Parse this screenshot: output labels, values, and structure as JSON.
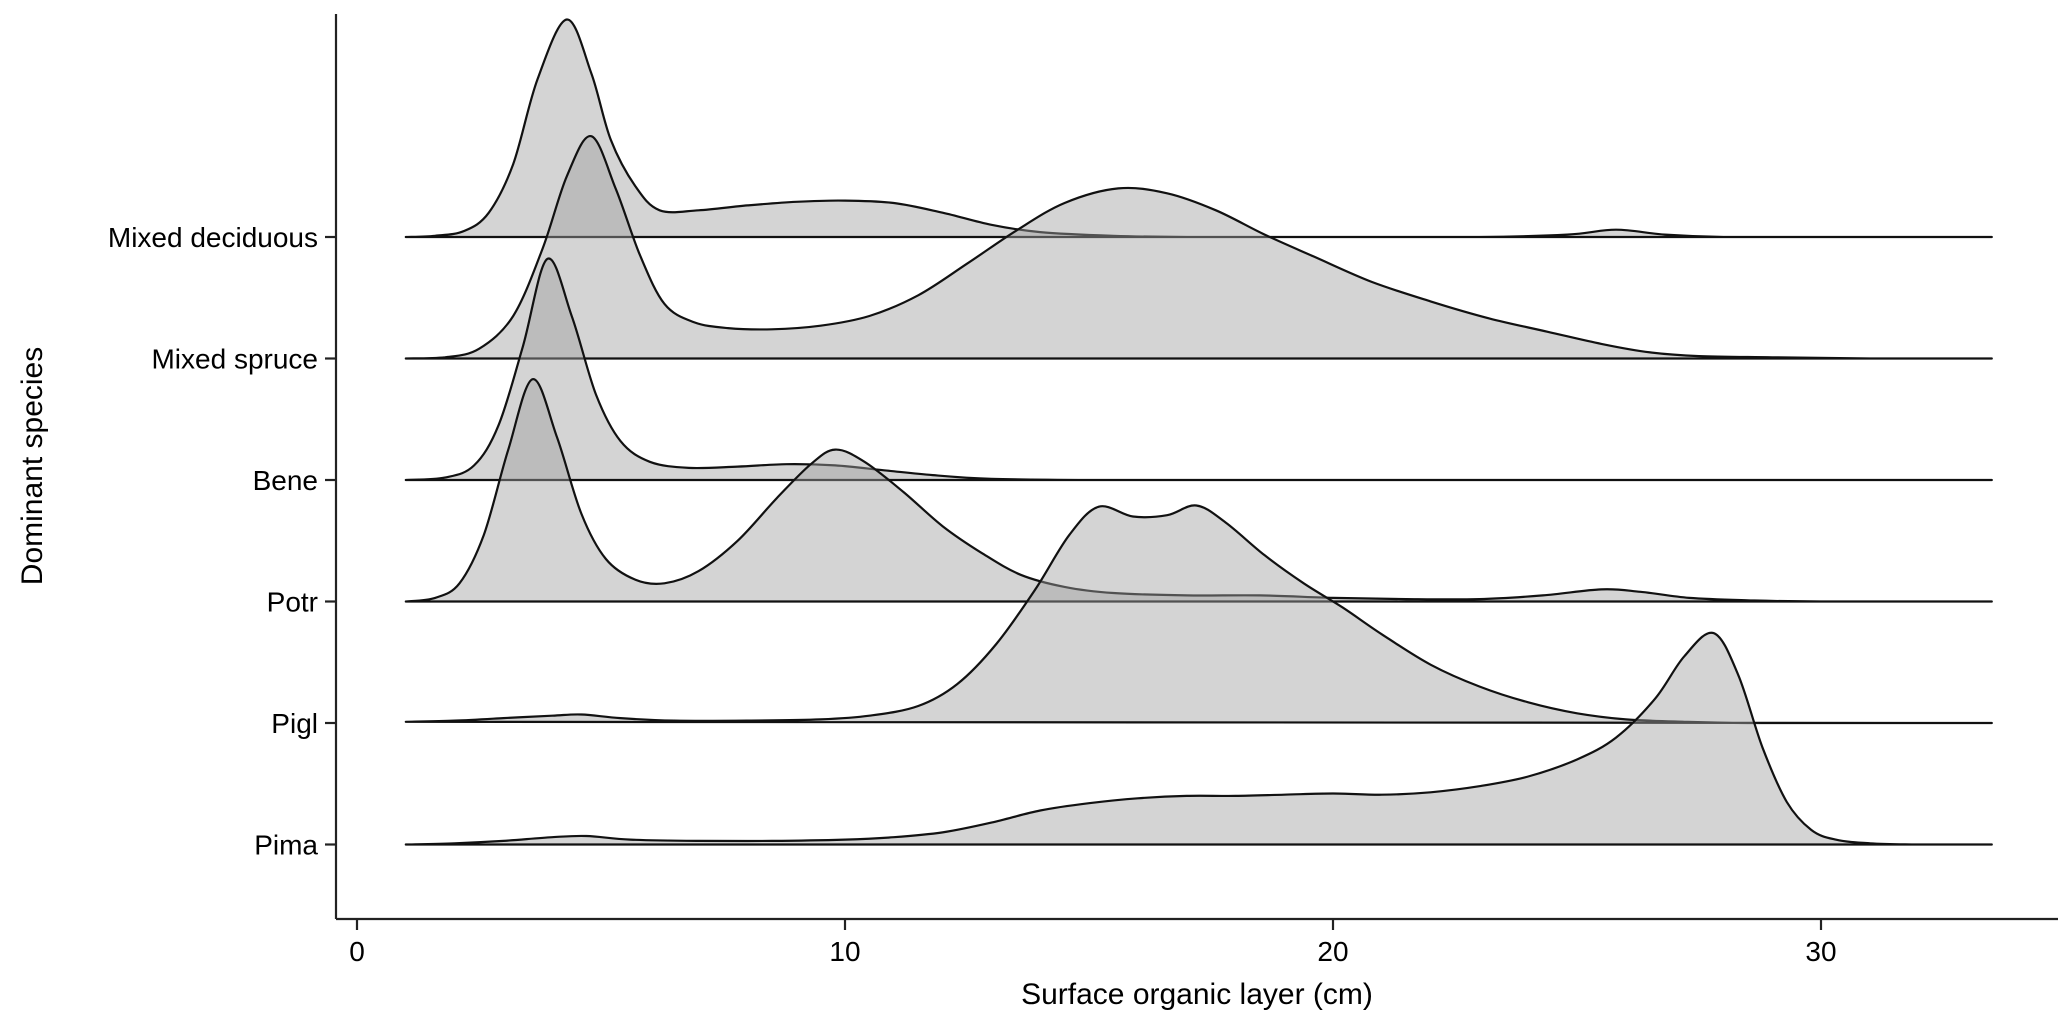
{
  "axes": {
    "x": {
      "title": "Surface organic layer (cm)",
      "tick_labels": [
        "0",
        "10",
        "20",
        "30"
      ]
    },
    "y": {
      "title": "Dominant species",
      "category_labels": [
        "Mixed deciduous",
        "Mixed spruce",
        "Bene",
        "Potr",
        "Pigl",
        "Pima"
      ]
    }
  },
  "chart_data": {
    "type": "area",
    "subtype": "ridgeline-density",
    "title": "",
    "xlabel": "Surface organic layer (cm)",
    "ylabel": "Dominant species",
    "xlim": [
      0,
      33.5
    ],
    "x_ticks": [
      0,
      10,
      20,
      30
    ],
    "grid": false,
    "legend": "none",
    "categories": [
      "Mixed deciduous",
      "Mixed spruce",
      "Bene",
      "Potr",
      "Pigl",
      "Pima"
    ],
    "height_unit": "relative density height, 1.0 = vertical gap between adjacent category baselines",
    "series": [
      {
        "name": "Mixed deciduous",
        "points": [
          [
            1.0,
            0
          ],
          [
            1.6,
            0.01
          ],
          [
            2.2,
            0.05
          ],
          [
            2.7,
            0.2
          ],
          [
            3.2,
            0.6
          ],
          [
            3.7,
            1.3
          ],
          [
            4.3,
            1.79
          ],
          [
            4.8,
            1.35
          ],
          [
            5.2,
            0.8
          ],
          [
            5.7,
            0.42
          ],
          [
            6.2,
            0.22
          ],
          [
            7.0,
            0.22
          ],
          [
            8.0,
            0.26
          ],
          [
            9.0,
            0.29
          ],
          [
            10.0,
            0.3
          ],
          [
            11.0,
            0.28
          ],
          [
            12.0,
            0.2
          ],
          [
            13.0,
            0.1
          ],
          [
            14.0,
            0.04
          ],
          [
            15.5,
            0.01
          ],
          [
            17,
            0
          ],
          [
            20,
            0
          ],
          [
            23,
            0
          ],
          [
            24.8,
            0.02
          ],
          [
            25.8,
            0.06
          ],
          [
            26.8,
            0.02
          ],
          [
            28,
            0
          ],
          [
            30,
            0
          ],
          [
            33.5,
            0
          ]
        ]
      },
      {
        "name": "Mixed spruce",
        "points": [
          [
            1.0,
            0
          ],
          [
            1.8,
            0.01
          ],
          [
            2.5,
            0.08
          ],
          [
            3.2,
            0.35
          ],
          [
            3.8,
            0.9
          ],
          [
            4.3,
            1.5
          ],
          [
            4.8,
            1.83
          ],
          [
            5.3,
            1.4
          ],
          [
            5.8,
            0.85
          ],
          [
            6.3,
            0.45
          ],
          [
            6.9,
            0.3
          ],
          [
            7.6,
            0.25
          ],
          [
            8.5,
            0.24
          ],
          [
            9.5,
            0.27
          ],
          [
            10.5,
            0.35
          ],
          [
            11.5,
            0.52
          ],
          [
            12.5,
            0.78
          ],
          [
            13.5,
            1.05
          ],
          [
            14.5,
            1.28
          ],
          [
            15.6,
            1.4
          ],
          [
            16.6,
            1.36
          ],
          [
            17.6,
            1.22
          ],
          [
            18.6,
            1.02
          ],
          [
            19.6,
            0.84
          ],
          [
            20.8,
            0.63
          ],
          [
            22,
            0.47
          ],
          [
            23.2,
            0.33
          ],
          [
            24.4,
            0.22
          ],
          [
            25.5,
            0.12
          ],
          [
            26.5,
            0.05
          ],
          [
            27.5,
            0.02
          ],
          [
            29,
            0.01
          ],
          [
            31,
            0
          ],
          [
            33.5,
            0
          ]
        ]
      },
      {
        "name": "Bene",
        "points": [
          [
            1.0,
            0
          ],
          [
            1.8,
            0.02
          ],
          [
            2.4,
            0.12
          ],
          [
            2.9,
            0.45
          ],
          [
            3.4,
            1.1
          ],
          [
            3.9,
            1.82
          ],
          [
            4.4,
            1.35
          ],
          [
            4.9,
            0.7
          ],
          [
            5.4,
            0.32
          ],
          [
            6.0,
            0.15
          ],
          [
            6.8,
            0.1
          ],
          [
            7.8,
            0.11
          ],
          [
            8.8,
            0.13
          ],
          [
            9.8,
            0.12
          ],
          [
            10.8,
            0.08
          ],
          [
            11.8,
            0.04
          ],
          [
            13,
            0.01
          ],
          [
            15,
            0
          ],
          [
            18,
            0
          ],
          [
            22,
            0
          ],
          [
            26,
            0
          ],
          [
            30,
            0
          ],
          [
            33.5,
            0
          ]
        ]
      },
      {
        "name": "Potr",
        "points": [
          [
            1.0,
            0
          ],
          [
            1.6,
            0.03
          ],
          [
            2.1,
            0.15
          ],
          [
            2.6,
            0.55
          ],
          [
            3.1,
            1.25
          ],
          [
            3.6,
            1.83
          ],
          [
            4.1,
            1.35
          ],
          [
            4.6,
            0.72
          ],
          [
            5.1,
            0.35
          ],
          [
            5.7,
            0.18
          ],
          [
            6.3,
            0.15
          ],
          [
            7.0,
            0.25
          ],
          [
            7.8,
            0.5
          ],
          [
            8.6,
            0.85
          ],
          [
            9.3,
            1.13
          ],
          [
            9.8,
            1.25
          ],
          [
            10.4,
            1.15
          ],
          [
            11.2,
            0.9
          ],
          [
            12.0,
            0.62
          ],
          [
            12.8,
            0.4
          ],
          [
            13.6,
            0.22
          ],
          [
            14.5,
            0.12
          ],
          [
            15.5,
            0.07
          ],
          [
            17,
            0.05
          ],
          [
            18.5,
            0.05
          ],
          [
            20,
            0.03
          ],
          [
            21.5,
            0.02
          ],
          [
            23,
            0.02
          ],
          [
            24.3,
            0.05
          ],
          [
            25.5,
            0.1
          ],
          [
            26.3,
            0.08
          ],
          [
            27.3,
            0.03
          ],
          [
            28.5,
            0.01
          ],
          [
            30,
            0
          ],
          [
            33.5,
            0
          ]
        ]
      },
      {
        "name": "Pigl",
        "points": [
          [
            1.0,
            0.01
          ],
          [
            2.0,
            0.02
          ],
          [
            3.0,
            0.04
          ],
          [
            4.0,
            0.06
          ],
          [
            4.6,
            0.07
          ],
          [
            5.4,
            0.04
          ],
          [
            6.5,
            0.02
          ],
          [
            8,
            0.02
          ],
          [
            9.5,
            0.03
          ],
          [
            10.5,
            0.06
          ],
          [
            11.5,
            0.14
          ],
          [
            12.3,
            0.32
          ],
          [
            13.1,
            0.65
          ],
          [
            13.9,
            1.1
          ],
          [
            14.6,
            1.55
          ],
          [
            15.2,
            1.78
          ],
          [
            15.9,
            1.7
          ],
          [
            16.6,
            1.71
          ],
          [
            17.2,
            1.79
          ],
          [
            17.8,
            1.65
          ],
          [
            18.6,
            1.38
          ],
          [
            19.4,
            1.15
          ],
          [
            20.2,
            0.95
          ],
          [
            21,
            0.73
          ],
          [
            22,
            0.48
          ],
          [
            23,
            0.3
          ],
          [
            24,
            0.17
          ],
          [
            25,
            0.08
          ],
          [
            26,
            0.03
          ],
          [
            27.2,
            0.01
          ],
          [
            28.5,
            0
          ],
          [
            31,
            0
          ],
          [
            33.5,
            0
          ]
        ]
      },
      {
        "name": "Pima",
        "points": [
          [
            1.0,
            0
          ],
          [
            2.0,
            0.01
          ],
          [
            3.0,
            0.03
          ],
          [
            4.0,
            0.06
          ],
          [
            4.7,
            0.07
          ],
          [
            5.6,
            0.04
          ],
          [
            7,
            0.03
          ],
          [
            8.5,
            0.03
          ],
          [
            10,
            0.04
          ],
          [
            11,
            0.06
          ],
          [
            12,
            0.1
          ],
          [
            13,
            0.18
          ],
          [
            14,
            0.28
          ],
          [
            15,
            0.34
          ],
          [
            16,
            0.38
          ],
          [
            17,
            0.4
          ],
          [
            18,
            0.4
          ],
          [
            19,
            0.41
          ],
          [
            20,
            0.42
          ],
          [
            21,
            0.41
          ],
          [
            22,
            0.43
          ],
          [
            23,
            0.48
          ],
          [
            24,
            0.56
          ],
          [
            25,
            0.7
          ],
          [
            25.8,
            0.88
          ],
          [
            26.6,
            1.2
          ],
          [
            27.2,
            1.55
          ],
          [
            27.8,
            1.74
          ],
          [
            28.3,
            1.4
          ],
          [
            28.8,
            0.8
          ],
          [
            29.3,
            0.35
          ],
          [
            29.8,
            0.12
          ],
          [
            30.3,
            0.04
          ],
          [
            31,
            0.01
          ],
          [
            32,
            0
          ],
          [
            33.5,
            0
          ]
        ]
      }
    ],
    "style": {
      "fill": "#a0a0a0",
      "fill_opacity": 0.45,
      "line_color": "#111111",
      "line_width": 2.2,
      "axis_color": "#222222",
      "background": "#ffffff",
      "text_color": "#000000"
    }
  }
}
